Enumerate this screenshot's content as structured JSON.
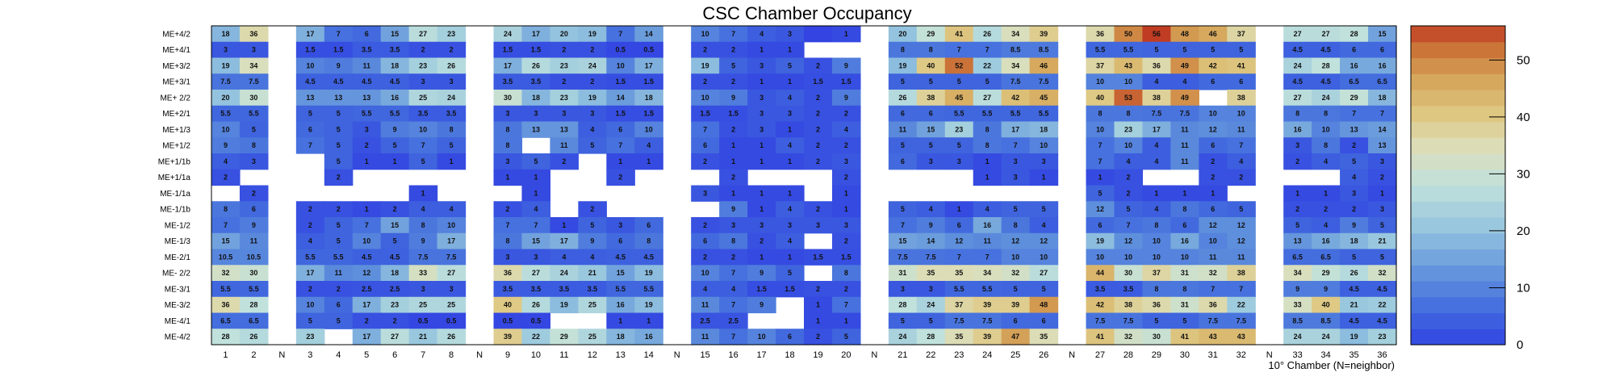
{
  "chart_data": {
    "type": "heatmap",
    "title": "CSC Chamber Occupancy",
    "xlabel": "10° Chamber (N=neighbor)",
    "ylabel": "",
    "x_tick_labels": [
      "1",
      "2",
      "N",
      "3",
      "4",
      "5",
      "6",
      "7",
      "8",
      "N",
      "9",
      "10",
      "11",
      "12",
      "13",
      "14",
      "N",
      "15",
      "16",
      "17",
      "18",
      "19",
      "20",
      "N",
      "21",
      "22",
      "23",
      "24",
      "25",
      "26",
      "N",
      "27",
      "28",
      "29",
      "30",
      "31",
      "32",
      "N",
      "33",
      "34",
      "35",
      "36"
    ],
    "y_labels": [
      "ME+4/2",
      "ME+4/1",
      "ME+3/2",
      "ME+3/1",
      "ME+ 2/2",
      "ME+2/1",
      "ME+1/3",
      "ME+1/2",
      "ME+1/1b",
      "ME+1/1a",
      "ME-1/1a",
      "ME-1/1b",
      "ME-1/2",
      "ME-1/3",
      "ME-2/1",
      "ME- 2/2",
      "ME-3/1",
      "ME-3/2",
      "ME-4/1",
      "ME-4/2"
    ],
    "z_range": [
      0,
      56
    ],
    "z_ticks": [
      0,
      10,
      20,
      30,
      40,
      50
    ],
    "rows": [
      {
        "label": "ME+4/2",
        "values": [
          18,
          36,
          null,
          17,
          7,
          6,
          15,
          27,
          23,
          null,
          24,
          17,
          20,
          19,
          7,
          14,
          null,
          10,
          7,
          4,
          3,
          0,
          1,
          null,
          20,
          29,
          41,
          26,
          34,
          39,
          null,
          36,
          50,
          56,
          48,
          46,
          37,
          null,
          27,
          27,
          28,
          15
        ]
      },
      {
        "label": "ME+4/1",
        "values": [
          3,
          3,
          null,
          1.5,
          1.5,
          3.5,
          3.5,
          2,
          2,
          null,
          1.5,
          1.5,
          2,
          2,
          0.5,
          0.5,
          null,
          2,
          2,
          1,
          1,
          null,
          null,
          null,
          8,
          8,
          7,
          7,
          8.5,
          8.5,
          null,
          5.5,
          5.5,
          5,
          5,
          5,
          5,
          null,
          4.5,
          4.5,
          6,
          6
        ]
      },
      {
        "label": "ME+3/2",
        "values": [
          19,
          34,
          null,
          10,
          9,
          11,
          18,
          23,
          26,
          null,
          17,
          26,
          23,
          24,
          10,
          17,
          null,
          19,
          5,
          3,
          5,
          2,
          9,
          null,
          19,
          40,
          52,
          22,
          34,
          46,
          null,
          37,
          43,
          36,
          49,
          42,
          41,
          null,
          24,
          28,
          16,
          16
        ]
      },
      {
        "label": "ME+3/1",
        "values": [
          7.5,
          7.5,
          null,
          4.5,
          4.5,
          4.5,
          4.5,
          3,
          3,
          null,
          3.5,
          3.5,
          2,
          2,
          1.5,
          1.5,
          null,
          2,
          2,
          1,
          1,
          1.5,
          1.5,
          null,
          5,
          5,
          5,
          5,
          7.5,
          7.5,
          null,
          10,
          10,
          4,
          4,
          6,
          6,
          null,
          4.5,
          4.5,
          6.5,
          6.5
        ]
      },
      {
        "label": "ME+ 2/2",
        "values": [
          20,
          30,
          null,
          13,
          13,
          13,
          16,
          25,
          24,
          null,
          30,
          18,
          23,
          19,
          14,
          18,
          null,
          10,
          9,
          3,
          4,
          2,
          9,
          null,
          26,
          38,
          45,
          27,
          42,
          45,
          null,
          40,
          53,
          38,
          49,
          null,
          38,
          null,
          27,
          24,
          29,
          18
        ]
      },
      {
        "label": "ME+2/1",
        "values": [
          5.5,
          5.5,
          null,
          5,
          5,
          5.5,
          5.5,
          3.5,
          3.5,
          null,
          3,
          3,
          3,
          3,
          1.5,
          1.5,
          null,
          1.5,
          1.5,
          3,
          3,
          2,
          2,
          null,
          6,
          6,
          5.5,
          5.5,
          5.5,
          5.5,
          null,
          8,
          8,
          7.5,
          7.5,
          10,
          10,
          null,
          8,
          8,
          7,
          7
        ]
      },
      {
        "label": "ME+1/3",
        "values": [
          10,
          5,
          null,
          6,
          5,
          3,
          9,
          10,
          8,
          null,
          8,
          13,
          13,
          4,
          6,
          10,
          null,
          7,
          2,
          3,
          1,
          2,
          4,
          null,
          11,
          15,
          23,
          8,
          17,
          18,
          null,
          10,
          23,
          17,
          11,
          12,
          11,
          null,
          16,
          10,
          13,
          14
        ]
      },
      {
        "label": "ME+1/2",
        "values": [
          9,
          8,
          null,
          7,
          5,
          2,
          5,
          7,
          5,
          null,
          8,
          null,
          11,
          5,
          7,
          4,
          null,
          6,
          1,
          1,
          4,
          2,
          2,
          null,
          5,
          5,
          5,
          8,
          7,
          10,
          null,
          7,
          10,
          4,
          11,
          6,
          7,
          null,
          3,
          8,
          2,
          13
        ]
      },
      {
        "label": "ME+1/1b",
        "values": [
          4,
          3,
          null,
          null,
          5,
          1,
          1,
          5,
          1,
          null,
          3,
          5,
          2,
          null,
          1,
          1,
          null,
          2,
          1,
          1,
          1,
          2,
          3,
          null,
          6,
          3,
          3,
          1,
          3,
          3,
          null,
          7,
          4,
          4,
          11,
          2,
          4,
          null,
          2,
          4,
          5,
          3
        ]
      },
      {
        "label": "ME+1/1a",
        "values": [
          2,
          null,
          null,
          null,
          2,
          null,
          null,
          null,
          null,
          null,
          1,
          1,
          null,
          null,
          2,
          null,
          null,
          null,
          2,
          null,
          null,
          null,
          2,
          null,
          null,
          null,
          null,
          1,
          3,
          1,
          null,
          1,
          2,
          null,
          null,
          2,
          2,
          null,
          null,
          null,
          4,
          2
        ]
      },
      {
        "label": "ME-1/1a",
        "values": [
          null,
          2,
          null,
          null,
          null,
          null,
          null,
          1,
          null,
          null,
          null,
          1,
          null,
          null,
          null,
          null,
          null,
          3,
          1,
          1,
          1,
          null,
          1,
          null,
          null,
          null,
          null,
          null,
          null,
          null,
          null,
          5,
          2,
          1,
          1,
          1,
          null,
          null,
          1,
          1,
          3,
          1
        ]
      },
      {
        "label": "ME-1/1b",
        "values": [
          8,
          6,
          null,
          2,
          2,
          1,
          2,
          4,
          4,
          null,
          2,
          4,
          null,
          2,
          null,
          null,
          null,
          null,
          9,
          1,
          4,
          2,
          1,
          null,
          5,
          4,
          1,
          4,
          5,
          5,
          null,
          12,
          5,
          4,
          8,
          6,
          5,
          null,
          2,
          2,
          2,
          3
        ]
      },
      {
        "label": "ME-1/2",
        "values": [
          7,
          9,
          null,
          2,
          5,
          7,
          15,
          8,
          10,
          null,
          7,
          7,
          1,
          5,
          3,
          6,
          null,
          2,
          3,
          3,
          3,
          3,
          3,
          null,
          7,
          9,
          6,
          16,
          8,
          4,
          null,
          6,
          7,
          8,
          6,
          12,
          12,
          null,
          5,
          4,
          9,
          5
        ]
      },
      {
        "label": "ME-1/3",
        "values": [
          15,
          11,
          null,
          4,
          5,
          10,
          5,
          9,
          17,
          null,
          8,
          15,
          17,
          9,
          6,
          8,
          null,
          6,
          8,
          2,
          4,
          null,
          2,
          null,
          15,
          14,
          12,
          11,
          12,
          12,
          null,
          19,
          12,
          10,
          16,
          10,
          12,
          null,
          13,
          16,
          18,
          21
        ]
      },
      {
        "label": "ME-2/1",
        "values": [
          10.5,
          10.5,
          null,
          5.5,
          5.5,
          4.5,
          4.5,
          7.5,
          7.5,
          null,
          3,
          3,
          4,
          4,
          4.5,
          4.5,
          null,
          2,
          2,
          1,
          1,
          1.5,
          1.5,
          null,
          7.5,
          7.5,
          7,
          7,
          10,
          10,
          null,
          10,
          10,
          10,
          10,
          11,
          11,
          null,
          6.5,
          6.5,
          5,
          5
        ]
      },
      {
        "label": "ME- 2/2",
        "values": [
          32,
          30,
          null,
          17,
          11,
          12,
          18,
          33,
          27,
          null,
          36,
          27,
          24,
          21,
          15,
          19,
          null,
          10,
          7,
          9,
          5,
          null,
          8,
          null,
          31,
          35,
          35,
          34,
          32,
          27,
          null,
          44,
          30,
          37,
          31,
          32,
          38,
          null,
          34,
          29,
          26,
          32
        ]
      },
      {
        "label": "ME-3/1",
        "values": [
          5.5,
          5.5,
          null,
          2,
          2,
          2.5,
          2.5,
          3,
          3,
          null,
          3.5,
          3.5,
          3.5,
          3.5,
          5.5,
          5.5,
          null,
          4,
          4,
          1.5,
          1.5,
          2,
          2,
          null,
          3,
          3,
          5.5,
          5.5,
          5,
          5,
          null,
          3.5,
          3.5,
          8,
          8,
          7,
          7,
          null,
          9,
          9,
          4.5,
          4.5
        ]
      },
      {
        "label": "ME-3/2",
        "values": [
          36,
          28,
          null,
          10,
          6,
          17,
          23,
          25,
          25,
          null,
          40,
          26,
          19,
          25,
          16,
          19,
          null,
          11,
          7,
          9,
          null,
          1,
          7,
          null,
          28,
          24,
          37,
          39,
          39,
          48,
          null,
          42,
          38,
          36,
          31,
          36,
          22,
          null,
          33,
          40,
          21,
          22
        ]
      },
      {
        "label": "ME-4/1",
        "values": [
          6.5,
          6.5,
          null,
          5,
          5,
          2,
          2,
          0.5,
          0.5,
          null,
          0.5,
          0.5,
          null,
          null,
          1,
          1,
          null,
          2.5,
          2.5,
          null,
          null,
          1,
          1,
          null,
          5,
          5,
          7.5,
          7.5,
          6,
          6,
          null,
          7.5,
          7.5,
          5,
          5,
          7.5,
          7.5,
          null,
          8.5,
          8.5,
          4.5,
          4.5
        ]
      },
      {
        "label": "ME-4/2",
        "values": [
          28,
          26,
          null,
          23,
          null,
          17,
          27,
          21,
          26,
          null,
          39,
          22,
          29,
          25,
          18,
          16,
          null,
          11,
          7,
          10,
          6,
          2,
          5,
          null,
          24,
          28,
          35,
          39,
          47,
          35,
          null,
          41,
          32,
          30,
          41,
          43,
          43,
          null,
          24,
          24,
          19,
          23
        ]
      }
    ]
  }
}
